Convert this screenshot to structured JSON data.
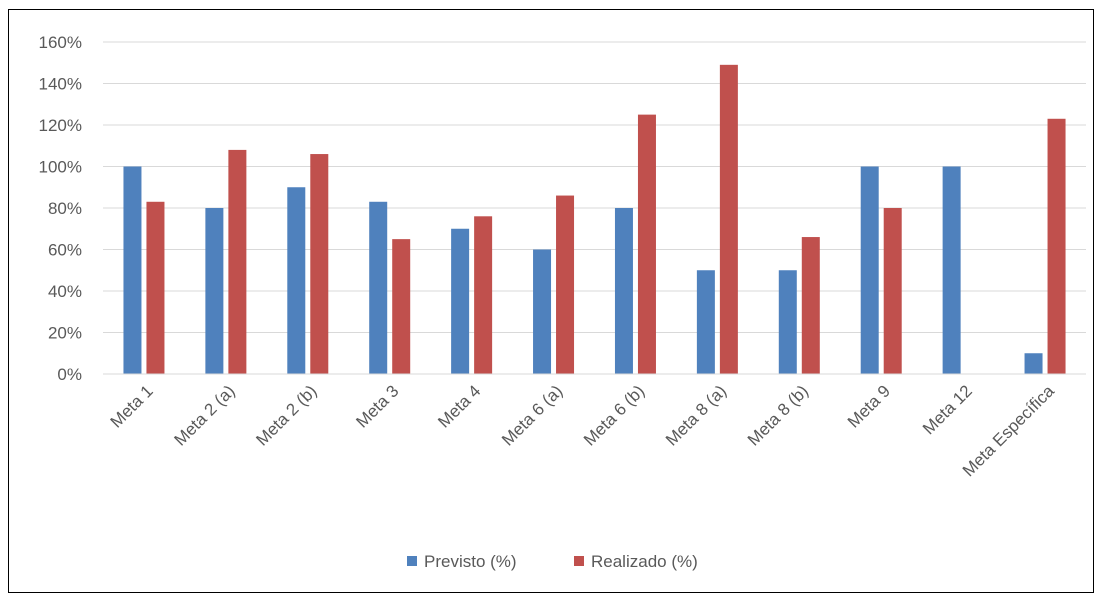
{
  "chart_data": {
    "type": "bar",
    "categories": [
      "Meta 1",
      "Meta 2 (a)",
      "Meta 2 (b)",
      "Meta 3",
      "Meta 4",
      "Meta 6 (a)",
      "Meta 6 (b)",
      "Meta 8 (a)",
      "Meta 8 (b)",
      "Meta 9",
      "Meta 12",
      "Meta Específica"
    ],
    "series": [
      {
        "name": "Previsto (%)",
        "color": "#4f81bd",
        "values": [
          100,
          80,
          90,
          83,
          70,
          60,
          80,
          50,
          50,
          100,
          100,
          10
        ]
      },
      {
        "name": "Realizado (%)",
        "color": "#c0504d",
        "values": [
          83,
          108,
          106,
          65,
          76,
          86,
          125,
          149,
          66,
          80,
          0,
          123
        ]
      }
    ],
    "yticks": [
      "0%",
      "20%",
      "40%",
      "60%",
      "80%",
      "100%",
      "120%",
      "140%",
      "160%"
    ],
    "ylim": [
      0,
      160
    ],
    "grid": true,
    "legend": "bottom",
    "title": "",
    "xlabel": "",
    "ylabel": ""
  }
}
